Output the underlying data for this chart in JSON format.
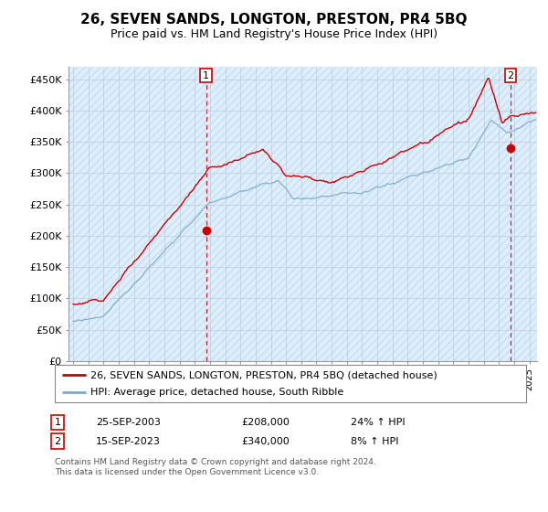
{
  "title": "26, SEVEN SANDS, LONGTON, PRESTON, PR4 5BQ",
  "subtitle": "Price paid vs. HM Land Registry's House Price Index (HPI)",
  "ylabel_ticks": [
    "£0",
    "£50K",
    "£100K",
    "£150K",
    "£200K",
    "£250K",
    "£300K",
    "£350K",
    "£400K",
    "£450K"
  ],
  "ytick_values": [
    0,
    50000,
    100000,
    150000,
    200000,
    250000,
    300000,
    350000,
    400000,
    450000
  ],
  "ylim": [
    0,
    470000
  ],
  "xlim_min": 1994.7,
  "xlim_max": 2025.5,
  "legend_line1": "26, SEVEN SANDS, LONGTON, PRESTON, PR4 5BQ (detached house)",
  "legend_line2": "HPI: Average price, detached house, South Ribble",
  "sale1_year": 2003.75,
  "sale1_price": 208000,
  "sale1_label": "25-SEP-2003",
  "sale1_hpi_text": "24% ↑ HPI",
  "sale2_year": 2023.75,
  "sale2_price": 340000,
  "sale2_label": "15-SEP-2023",
  "sale2_hpi_text": "8% ↑ HPI",
  "footnote": "Contains HM Land Registry data © Crown copyright and database right 2024.\nThis data is licensed under the Open Government Licence v3.0.",
  "line_color_red": "#cc0000",
  "line_color_blue": "#7aaacc",
  "bg_chart": "#ddeeff",
  "bg_hatch": "#ccddee",
  "grid_color": "#bbccdd",
  "title_fontsize": 11,
  "subtitle_fontsize": 9
}
